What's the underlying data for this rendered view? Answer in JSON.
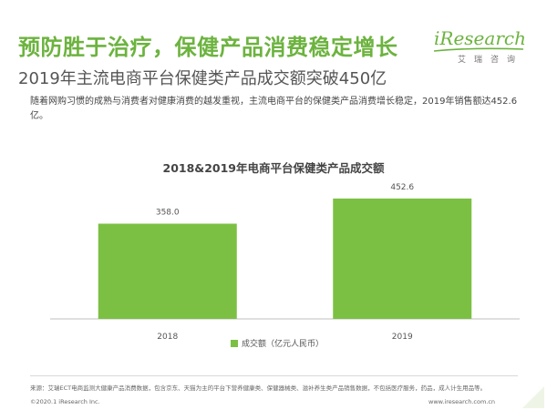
{
  "header": {
    "title": "预防胜于治疗，保健产品消费稳定增长",
    "subtitle": "2019年主流电商平台保健类产品成交额突破450亿"
  },
  "logo": {
    "word": "iResearch",
    "cn": "艾瑞咨询"
  },
  "intro": "随着网购习惯的成熟与消费者对健康消费的越发重视，主流电商平台的保健类产品消费增长稳定，2019年销售额达452.6亿。",
  "chart_data": {
    "type": "bar",
    "title": "2018&2019年电商平台保健类产品成交额",
    "categories": [
      "2018",
      "2019"
    ],
    "series": [
      {
        "name": "成交额（亿元人民币）",
        "values": [
          358.0,
          452.6
        ],
        "data_labels": [
          "358.0",
          "452.6"
        ]
      }
    ],
    "legend_position": "bottom",
    "grid": false,
    "color": "#7bc043"
  },
  "footer": {
    "source": "来源：艾瑞ECT电商监测大健康产品消费数据，包含京东、天猫为主的平台下营养健康类、保健器械类、滋补养生类产品销售数据，不包括医疗服务，药品，成人计生用品等。",
    "copyright": "©2020.1 iResearch Inc.",
    "website": "www.iresearch.com.cn"
  }
}
